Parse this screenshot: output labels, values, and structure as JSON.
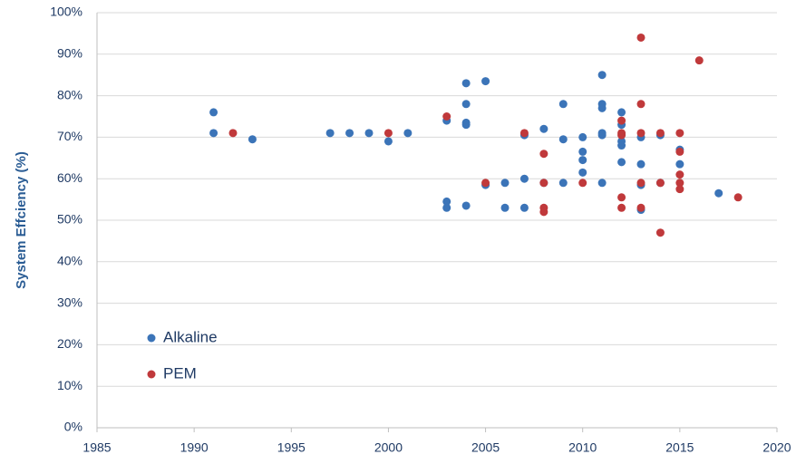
{
  "chart_data": {
    "type": "scatter",
    "y_label": "System Effciency (%)",
    "xlim": [
      1985,
      2020
    ],
    "xticks": [
      1985,
      1990,
      1995,
      2000,
      2005,
      2010,
      2015,
      2020
    ],
    "ylim": [
      0,
      100
    ],
    "yticks": [
      {
        "value": 0,
        "label": "0%"
      },
      {
        "value": 10,
        "label": "10%"
      },
      {
        "value": 20,
        "label": "20%"
      },
      {
        "value": 30,
        "label": "30%"
      },
      {
        "value": 40,
        "label": "40%"
      },
      {
        "value": 50,
        "label": "50%"
      },
      {
        "value": 60,
        "label": "60%"
      },
      {
        "value": 70,
        "label": "70%"
      },
      {
        "value": 80,
        "label": "80%"
      },
      {
        "value": 90,
        "label": "90%"
      },
      {
        "value": 100,
        "label": "100%"
      }
    ],
    "grid": true,
    "legend": "lower left",
    "series": [
      {
        "name": "Alkaline",
        "color": "#3b74b8",
        "x": [
          1991,
          1991,
          1993,
          1997,
          1998,
          1999,
          2000,
          2001,
          2003,
          2003,
          2003,
          2004,
          2004,
          2004,
          2004,
          2004,
          2005,
          2005,
          2006,
          2006,
          2007,
          2007,
          2007,
          2008,
          2008,
          2009,
          2009,
          2009,
          2010,
          2010,
          2010,
          2010,
          2011,
          2011,
          2011,
          2011,
          2011,
          2011,
          2012,
          2012,
          2012,
          2012,
          2012,
          2013,
          2013,
          2013,
          2013,
          2014,
          2014,
          2015,
          2015,
          2017
        ],
        "values": [
          76,
          71,
          69.5,
          71,
          71,
          71,
          69,
          71,
          74,
          54.5,
          53,
          83,
          78,
          73.5,
          73,
          53.5,
          83.5,
          58.5,
          59,
          53,
          60,
          53,
          70.5,
          72,
          59,
          78,
          69.5,
          59,
          70,
          66.5,
          64.5,
          61.5,
          85,
          78,
          77,
          71,
          70.5,
          59,
          76,
          73,
          69,
          68,
          64,
          70,
          63.5,
          58.5,
          52.5,
          70.5,
          59,
          67,
          63.5,
          56.5
        ]
      },
      {
        "name": "PEM",
        "color": "#c0393b",
        "x": [
          1992,
          2000,
          2003,
          2005,
          2007,
          2008,
          2008,
          2008,
          2008,
          2010,
          2012,
          2012,
          2012,
          2012,
          2012,
          2013,
          2013,
          2013,
          2013,
          2013,
          2014,
          2014,
          2014,
          2015,
          2015,
          2015,
          2015,
          2015,
          2016,
          2018
        ],
        "values": [
          71,
          71,
          75,
          59,
          71,
          66,
          59,
          53,
          52,
          59,
          74,
          71,
          70.5,
          55.5,
          53,
          94,
          78,
          71,
          59,
          53,
          71,
          59,
          47,
          71,
          66.5,
          61,
          59,
          57.5,
          88.5,
          55.5
        ]
      }
    ]
  }
}
